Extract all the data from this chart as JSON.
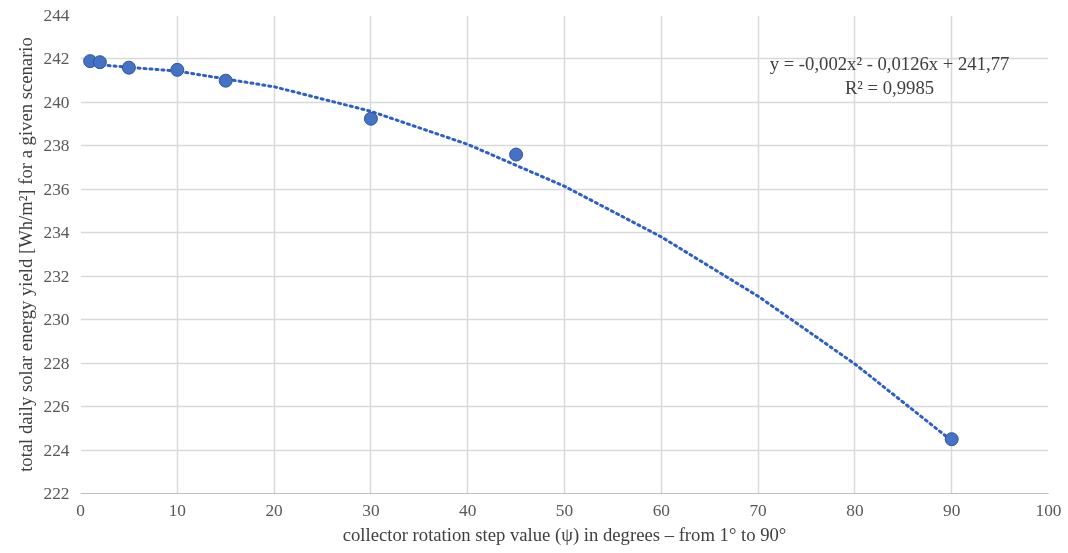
{
  "chart_data": {
    "type": "scatter",
    "xlabel": "collector rotation step value (ψ) in degrees – from 1° to 90°",
    "ylabel": "total daily solar energy yield [Wh/m²] for a given scenario",
    "x": [
      1,
      2,
      5,
      10,
      15,
      30,
      45,
      90
    ],
    "series": [
      {
        "color": "#4472c4",
        "values": [
          241.9,
          241.85,
          241.6,
          241.5,
          241.0,
          239.25,
          237.6,
          224.5
        ],
        "marker": "circle"
      },
      {
        "type": "line",
        "color": "#2e5fc9",
        "line_style": "dotted",
        "x": [
          1,
          10,
          20,
          30,
          40,
          50,
          60,
          70,
          80,
          90
        ],
        "values": [
          241.76,
          241.44,
          240.72,
          239.59,
          238.07,
          236.14,
          233.81,
          231.08,
          227.96,
          224.43
        ]
      }
    ],
    "annotations": [
      "y = -0,002x² - 0,0126x + 241,77",
      "R² = 0,9985"
    ],
    "xlim": [
      0,
      100
    ],
    "xticks": [
      0,
      10,
      20,
      30,
      40,
      50,
      60,
      70,
      80,
      90,
      100
    ],
    "ylim": [
      222,
      244
    ],
    "yticks": [
      222,
      224,
      226,
      228,
      230,
      232,
      234,
      236,
      238,
      240,
      242,
      244
    ],
    "grid": true
  }
}
